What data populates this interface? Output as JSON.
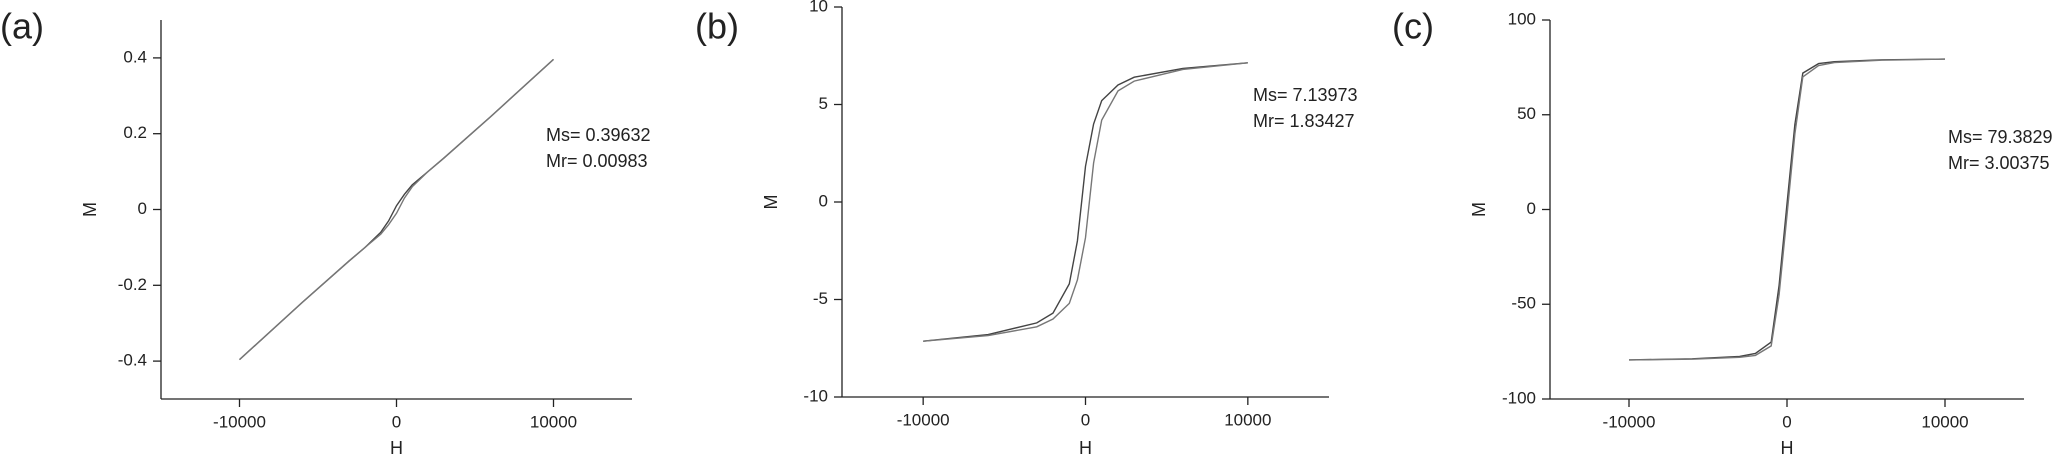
{
  "chart_data": [
    {
      "type": "line",
      "panel_label": "(a)",
      "x_label": "H",
      "y_label": "M",
      "annotations": [
        "Ms= 0.39632",
        "Mr= 0.00983"
      ],
      "x": [
        -10000,
        -6000,
        -3000,
        -2000,
        -1000,
        -500,
        0,
        500,
        1000,
        2000,
        3000,
        6000,
        10000
      ],
      "series": [
        {
          "color": "#444444",
          "values": [
            -0.396,
            -0.245,
            -0.135,
            -0.1,
            -0.06,
            -0.03,
            0.01,
            0.04,
            0.065,
            0.1,
            0.135,
            0.245,
            0.396
          ]
        },
        {
          "color": "#777777",
          "values": [
            -0.396,
            -0.245,
            -0.135,
            -0.1,
            -0.065,
            -0.04,
            -0.01,
            0.03,
            0.06,
            0.1,
            0.135,
            0.245,
            0.396
          ]
        }
      ],
      "xlim": [
        -15000,
        15000
      ],
      "xticks": [
        -10000,
        0,
        10000
      ],
      "ylim": [
        -0.5,
        0.5
      ],
      "yticks": [
        -0.4,
        -0.2,
        0.0,
        0.2,
        0.4
      ]
    },
    {
      "type": "line",
      "panel_label": "(b)",
      "x_label": "H",
      "y_label": "M",
      "annotations": [
        "Ms= 7.13973",
        "Mr= 1.83427"
      ],
      "x": [
        -10000,
        -6000,
        -3000,
        -2000,
        -1000,
        -500,
        0,
        500,
        1000,
        2000,
        3000,
        6000,
        10000
      ],
      "series": [
        {
          "color": "#444444",
          "values": [
            -7.14,
            -6.8,
            -6.2,
            -5.7,
            -4.2,
            -2.0,
            1.83,
            4.0,
            5.2,
            6.0,
            6.4,
            6.85,
            7.14
          ]
        },
        {
          "color": "#777777",
          "values": [
            -7.14,
            -6.85,
            -6.4,
            -6.0,
            -5.2,
            -4.0,
            -1.83,
            2.0,
            4.2,
            5.7,
            6.2,
            6.8,
            7.14
          ]
        }
      ],
      "xlim": [
        -15000,
        15000
      ],
      "xticks": [
        -10000,
        0,
        10000
      ],
      "ylim": [
        -10,
        10
      ],
      "yticks": [
        -10,
        -5,
        0,
        5,
        10
      ]
    },
    {
      "type": "line",
      "panel_label": "(c)",
      "x_label": "H",
      "y_label": "M",
      "annotations": [
        "Ms= 79.3829",
        "Mr= 3.00375"
      ],
      "x": [
        -10000,
        -6000,
        -3000,
        -2000,
        -1000,
        -500,
        0,
        500,
        1000,
        2000,
        3000,
        6000,
        10000
      ],
      "series": [
        {
          "color": "#444444",
          "values": [
            -79.38,
            -78.8,
            -77.5,
            -76,
            -70,
            -40,
            3.0,
            45,
            72,
            77,
            78,
            79,
            79.38
          ]
        },
        {
          "color": "#777777",
          "values": [
            -79.38,
            -79,
            -78,
            -77,
            -72,
            -45,
            -3.0,
            40,
            70,
            76,
            77.5,
            78.8,
            79.38
          ]
        }
      ],
      "xlim": [
        -15000,
        15000
      ],
      "xticks": [
        -10000,
        0,
        10000
      ],
      "ylim": [
        -100,
        100
      ],
      "yticks": [
        -100,
        -50,
        0,
        50,
        100
      ]
    }
  ]
}
